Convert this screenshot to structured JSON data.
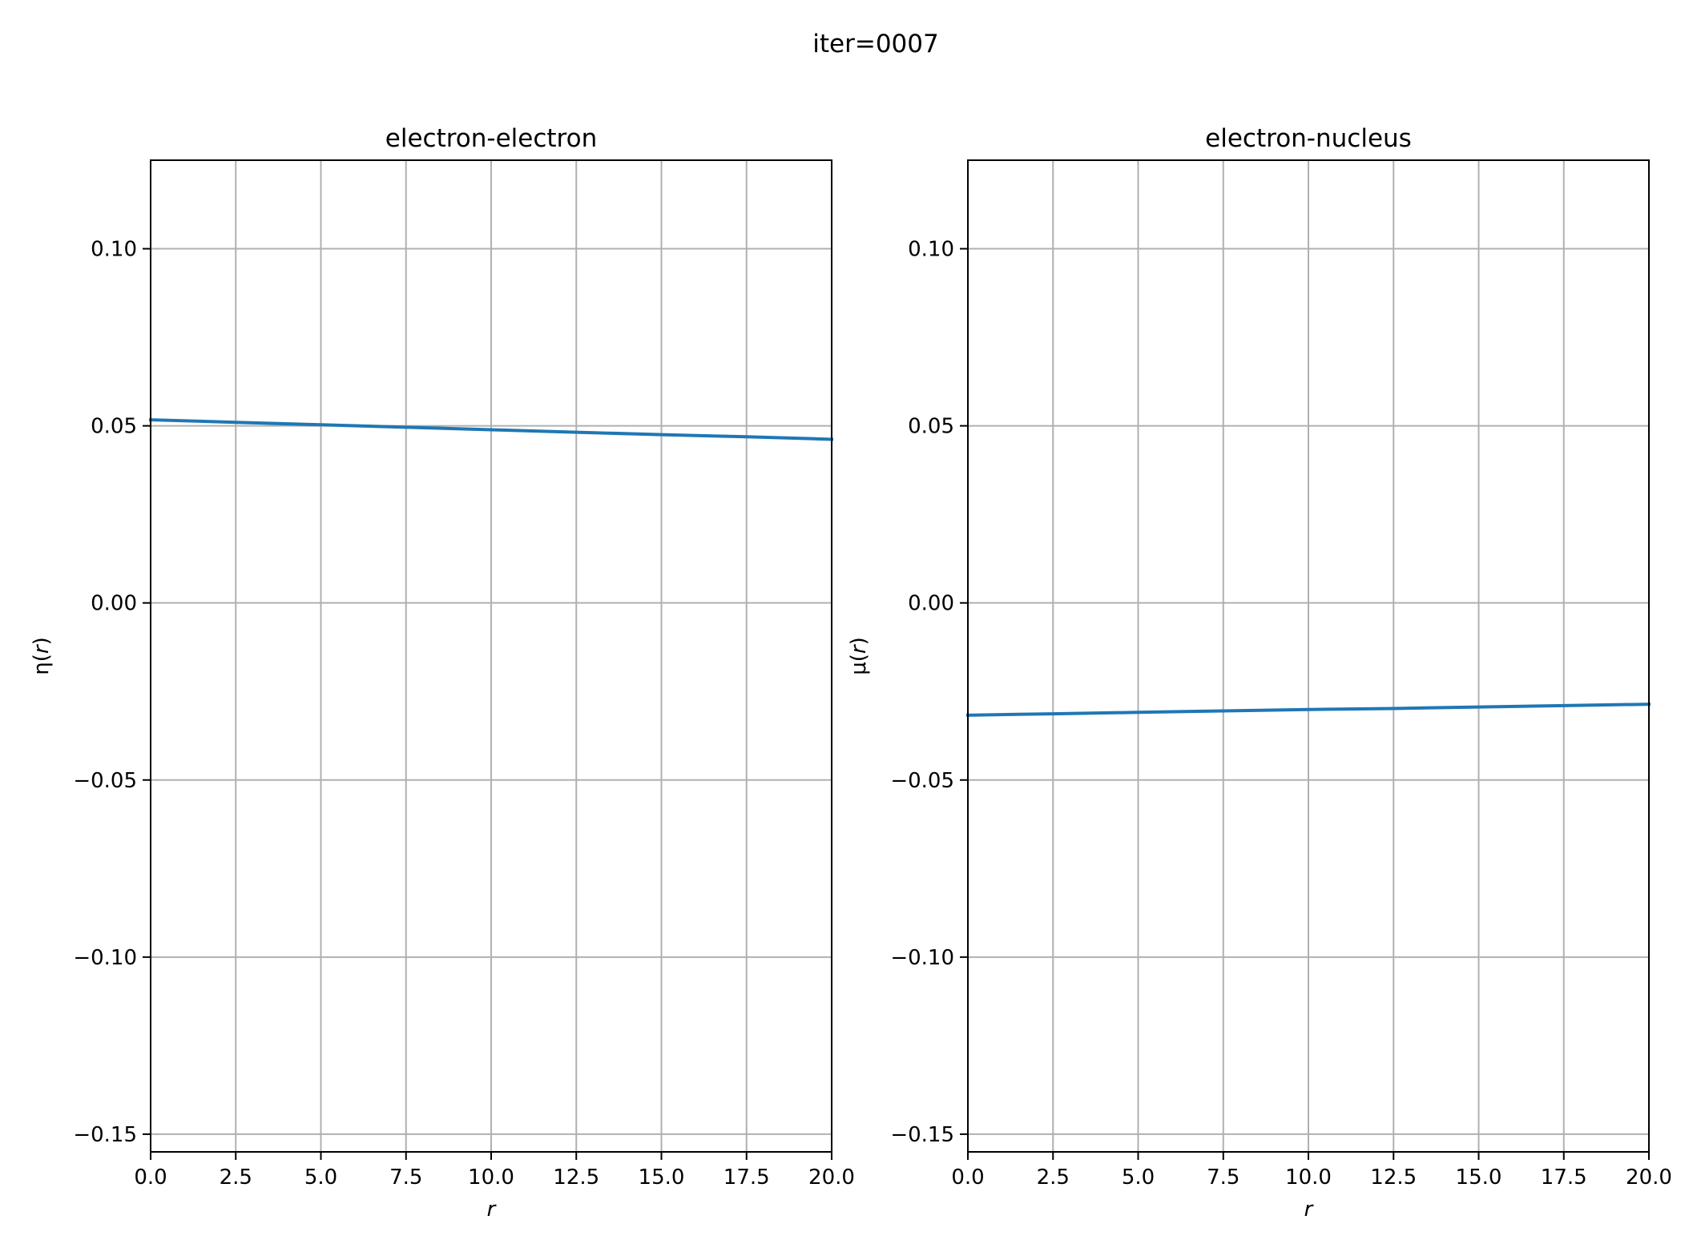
{
  "figure": {
    "suptitle": "iter=0007"
  },
  "chart_data": [
    {
      "type": "line",
      "title": "electron-electron",
      "xlabel": "r",
      "ylabel": "η(r)",
      "xlim": [
        0,
        20
      ],
      "ylim": [
        -0.155,
        0.125
      ],
      "xticks": [
        0,
        2.5,
        5,
        7.5,
        10,
        12.5,
        15,
        17.5,
        20
      ],
      "xtick_labels": [
        "0.0",
        "2.5",
        "5.0",
        "7.5",
        "10.0",
        "12.5",
        "15.0",
        "17.5",
        "20.0"
      ],
      "yticks": [
        0.1,
        0.05,
        0.0,
        -0.05,
        -0.1,
        -0.15
      ],
      "ytick_labels": [
        "0.10",
        "0.05",
        "0.00",
        "−0.05",
        "−0.10",
        "−0.15"
      ],
      "grid": true,
      "series": [
        {
          "color": "#1f77b4",
          "x": [
            0,
            2.5,
            5,
            7.5,
            10,
            12.5,
            15,
            17.5,
            20
          ],
          "y": [
            0.0517,
            0.051,
            0.0503,
            0.0496,
            0.0489,
            0.0482,
            0.0475,
            0.0469,
            0.0462
          ]
        }
      ]
    },
    {
      "type": "line",
      "title": "electron-nucleus",
      "xlabel": "r",
      "ylabel": "μ(r)",
      "xlim": [
        0,
        20
      ],
      "ylim": [
        -0.155,
        0.125
      ],
      "xticks": [
        0,
        2.5,
        5,
        7.5,
        10,
        12.5,
        15,
        17.5,
        20
      ],
      "xtick_labels": [
        "0.0",
        "2.5",
        "5.0",
        "7.5",
        "10.0",
        "12.5",
        "15.0",
        "17.5",
        "20.0"
      ],
      "yticks": [
        0.1,
        0.05,
        0.0,
        -0.05,
        -0.1,
        -0.15
      ],
      "ytick_labels": [
        "0.10",
        "0.05",
        "0.00",
        "−0.05",
        "−0.10",
        "−0.15"
      ],
      "grid": true,
      "series": [
        {
          "color": "#1f77b4",
          "x": [
            0,
            2.5,
            5,
            7.5,
            10,
            12.5,
            15,
            17.5,
            20
          ],
          "y": [
            -0.0317,
            -0.0313,
            -0.0309,
            -0.0305,
            -0.0301,
            -0.0298,
            -0.0294,
            -0.029,
            -0.0286
          ]
        }
      ]
    }
  ]
}
